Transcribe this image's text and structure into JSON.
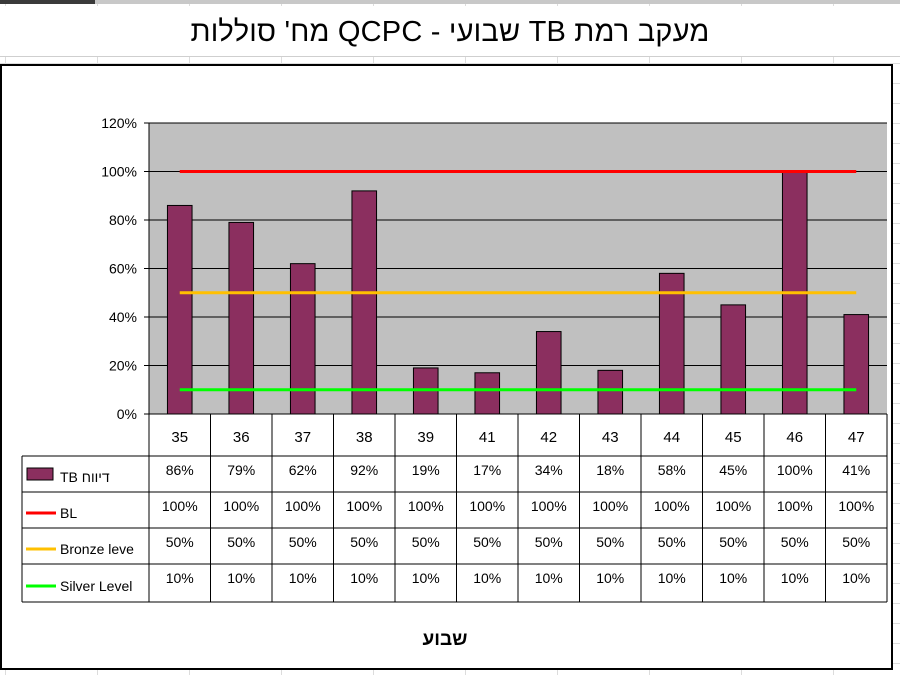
{
  "title": "מעקב רמת TB שבועי - QCPC מח' סוללות",
  "chart_data": {
    "type": "bar",
    "xlabel": "שבוע",
    "ylabel": "",
    "ylim": [
      0,
      1.2
    ],
    "yticks": [
      0,
      0.2,
      0.4,
      0.6,
      0.8,
      1.0,
      1.2
    ],
    "ytick_labels": [
      "0%",
      "20%",
      "40%",
      "60%",
      "80%",
      "100%",
      "120%"
    ],
    "categories": [
      "35",
      "36",
      "37",
      "38",
      "39",
      "41",
      "42",
      "43",
      "44",
      "45",
      "46",
      "47"
    ],
    "plot_background": "#c0c0c0",
    "grid": true,
    "legend": "data-table",
    "series": [
      {
        "name": "TB דיווח",
        "kind": "bar",
        "color": "#8b2f5f",
        "values": [
          0.86,
          0.79,
          0.62,
          0.92,
          0.19,
          0.17,
          0.34,
          0.18,
          0.58,
          0.45,
          1.0,
          0.41
        ],
        "labels": [
          "86%",
          "79%",
          "62%",
          "92%",
          "19%",
          "17%",
          "34%",
          "18%",
          "58%",
          "45%",
          "100%",
          "41%"
        ]
      },
      {
        "name": "BL",
        "kind": "line",
        "color": "#ff0000",
        "values": [
          1.0,
          1.0,
          1.0,
          1.0,
          1.0,
          1.0,
          1.0,
          1.0,
          1.0,
          1.0,
          1.0,
          1.0
        ],
        "labels": [
          "100%",
          "100%",
          "100%",
          "100%",
          "100%",
          "100%",
          "100%",
          "100%",
          "100%",
          "100%",
          "100%",
          "100%"
        ]
      },
      {
        "name": "Bronze leve",
        "kind": "line",
        "color": "#ffc000",
        "values": [
          0.5,
          0.5,
          0.5,
          0.5,
          0.5,
          0.5,
          0.5,
          0.5,
          0.5,
          0.5,
          0.5,
          0.5
        ],
        "labels": [
          "50%",
          "50%",
          "50%",
          "50%",
          "50%",
          "50%",
          "50%",
          "50%",
          "50%",
          "50%",
          "50%",
          "50%"
        ]
      },
      {
        "name": "Silver Level",
        "kind": "line",
        "color": "#00ff00",
        "values": [
          0.1,
          0.1,
          0.1,
          0.1,
          0.1,
          0.1,
          0.1,
          0.1,
          0.1,
          0.1,
          0.1,
          0.1
        ],
        "labels": [
          "10%",
          "10%",
          "10%",
          "10%",
          "10%",
          "10%",
          "10%",
          "10%",
          "10%",
          "10%",
          "10%",
          "10%"
        ]
      }
    ]
  }
}
